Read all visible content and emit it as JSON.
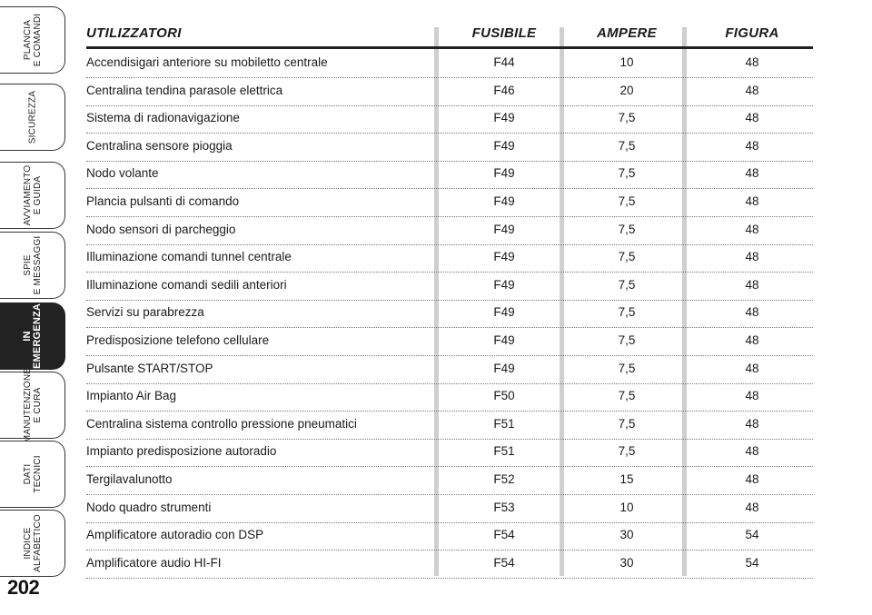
{
  "tabs": [
    {
      "label": "PLANCIA\nE COMANDI",
      "active": false
    },
    {
      "label": "SICUREZZA",
      "active": false
    },
    {
      "label": "AVVIAMENTO\nE GUIDA",
      "active": false
    },
    {
      "label": "SPIE\nE MESSAGGI",
      "active": false
    },
    {
      "label": "IN\nEMERGENZA",
      "active": true
    },
    {
      "label": "MANUTENZIONE\nE CURA",
      "active": false
    },
    {
      "label": "DATI\nTECNICI",
      "active": false
    },
    {
      "label": "INDICE\nALFABETICO",
      "active": false
    }
  ],
  "page_number": "202",
  "table": {
    "headers": {
      "user": "UTILIZZATORI",
      "fuse": "FUSIBILE",
      "amp": "AMPERE",
      "fig": "FIGURA"
    },
    "rows": [
      {
        "user": "Accendisigari anteriore su mobiletto centrale",
        "fuse": "F44",
        "amp": "10",
        "fig": "48"
      },
      {
        "user": "Centralina tendina parasole elettrica",
        "fuse": "F46",
        "amp": "20",
        "fig": "48"
      },
      {
        "user": "Sistema di radionavigazione",
        "fuse": "F49",
        "amp": "7,5",
        "fig": "48"
      },
      {
        "user": "Centralina sensore pioggia",
        "fuse": "F49",
        "amp": "7,5",
        "fig": "48"
      },
      {
        "user": "Nodo volante",
        "fuse": "F49",
        "amp": "7,5",
        "fig": "48"
      },
      {
        "user": "Plancia pulsanti di comando",
        "fuse": "F49",
        "amp": "7,5",
        "fig": "48"
      },
      {
        "user": "Nodo sensori di parcheggio",
        "fuse": "F49",
        "amp": "7,5",
        "fig": "48"
      },
      {
        "user": "Illuminazione comandi tunnel centrale",
        "fuse": "F49",
        "amp": "7,5",
        "fig": "48"
      },
      {
        "user": "Illuminazione comandi sedili anteriori",
        "fuse": "F49",
        "amp": "7,5",
        "fig": "48"
      },
      {
        "user": "Servizi su parabrezza",
        "fuse": "F49",
        "amp": "7,5",
        "fig": "48"
      },
      {
        "user": "Predisposizione telefono cellulare",
        "fuse": "F49",
        "amp": "7,5",
        "fig": "48"
      },
      {
        "user": "Pulsante START/STOP",
        "fuse": "F49",
        "amp": "7,5",
        "fig": "48"
      },
      {
        "user": "Impianto Air Bag",
        "fuse": "F50",
        "amp": "7,5",
        "fig": "48"
      },
      {
        "user": "Centralina sistema controllo pressione pneumatici",
        "fuse": "F51",
        "amp": "7,5",
        "fig": "48"
      },
      {
        "user": "Impianto predisposizione autoradio",
        "fuse": "F51",
        "amp": "7,5",
        "fig": "48"
      },
      {
        "user": "Tergilavalunotto",
        "fuse": "F52",
        "amp": "15",
        "fig": "48"
      },
      {
        "user": "Nodo quadro strumenti",
        "fuse": "F53",
        "amp": "10",
        "fig": "48"
      },
      {
        "user": "Amplificatore autoradio con DSP",
        "fuse": "F54",
        "amp": "30",
        "fig": "54"
      },
      {
        "user": "Amplificatore audio HI-FI",
        "fuse": "F54",
        "amp": "30",
        "fig": "54"
      }
    ]
  }
}
